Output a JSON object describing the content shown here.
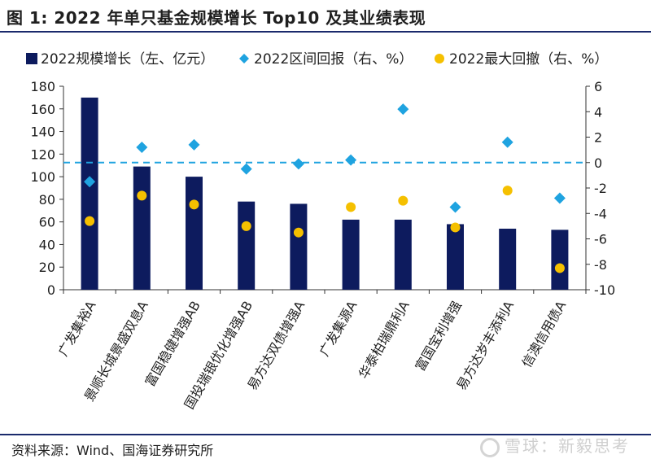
{
  "header": {
    "title": "图 1:  2022 年单只基金规模增长 Top10 及其业绩表现"
  },
  "footer": {
    "source": "资料来源：Wind、国海证券研究所",
    "watermark": "雪球：新毅思考"
  },
  "colors": {
    "bar": "#0d1b5e",
    "return": "#1fa3e0",
    "drawdown": "#f5c000",
    "refline": "#1fa3e0"
  },
  "chart_data": {
    "type": "bar",
    "categories": [
      "广发集裕A",
      "景顺长城景盛双息A",
      "富国稳健增强AB",
      "国投瑞银优化增强AB",
      "易方达双债增强A",
      "广发集源A",
      "华泰柏瑞鼎利A",
      "富国宝利增强",
      "易方达岁丰添利A",
      "信澳信用债A"
    ],
    "series": [
      {
        "name": "2022规模增长（左、亿元）",
        "type": "bar",
        "axis": "left",
        "values": [
          170,
          109,
          100,
          78,
          76,
          62,
          62,
          58,
          54,
          53
        ]
      },
      {
        "name": "2022区间回报（右、%）",
        "type": "scatter",
        "marker": "diamond",
        "axis": "right",
        "values": [
          -1.5,
          1.2,
          1.4,
          -0.5,
          -0.1,
          0.2,
          4.2,
          -3.5,
          1.6,
          -2.8
        ]
      },
      {
        "name": "2022最大回撤（右、%）",
        "type": "scatter",
        "marker": "circle",
        "axis": "right",
        "values": [
          -4.6,
          -2.6,
          -3.3,
          -5.0,
          -5.5,
          -3.5,
          -3.0,
          -5.1,
          -2.2,
          -8.3
        ]
      }
    ],
    "y_left": {
      "lim": [
        0,
        180
      ],
      "ticks": [
        "0",
        "20",
        "40",
        "60",
        "80",
        "100",
        "120",
        "140",
        "160",
        "180"
      ]
    },
    "y_right": {
      "lim": [
        -10,
        6
      ],
      "ticks": [
        "-10",
        "-8",
        "-6",
        "-4",
        "-2",
        "0",
        "2",
        "4",
        "6"
      ]
    },
    "reference_line": {
      "axis": "right",
      "value": 0,
      "style": "dashed"
    },
    "legend_position": "top",
    "grid": false
  }
}
